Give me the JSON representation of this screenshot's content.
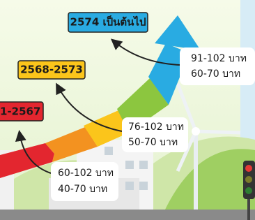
{
  "periods": [
    {
      "label": "1-2567",
      "prices": [
        "60-102 บาท",
        "40-70 บาท"
      ]
    },
    {
      "label": "2568-2573",
      "prices": [
        "76-102 บาท",
        "50-70 บาท"
      ]
    },
    {
      "label": "2574 เป็นต้นไป",
      "prices": [
        "91-102 บาท",
        "60-70 บาท"
      ]
    }
  ]
}
